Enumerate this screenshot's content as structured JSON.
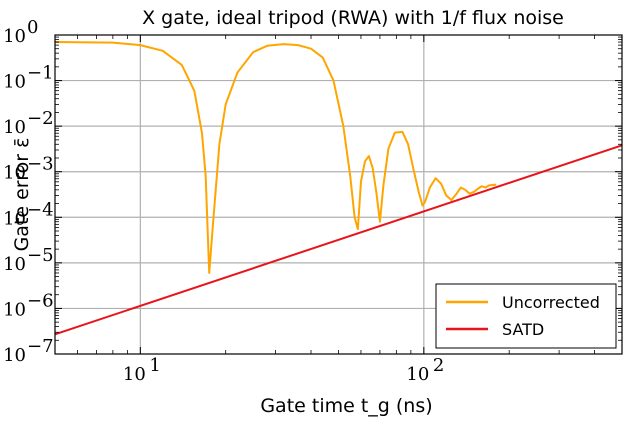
{
  "chart_data": {
    "type": "line",
    "title": "X gate, ideal tripod (RWA) with 1/f flux noise",
    "xlabel": "Gate time t_g (ns)",
    "ylabel": "Gate error ε̄",
    "xscale": "log",
    "yscale": "log",
    "xlim": [
      5,
      500
    ],
    "ylim": [
      1e-07,
      1
    ],
    "grid": true,
    "legend_position": "bottom-right",
    "x_tick_labels": [
      "10^1",
      "10^2"
    ],
    "y_tick_labels": [
      "10^0",
      "10^-1",
      "10^-2",
      "10^-3",
      "10^-4",
      "10^-5",
      "10^-6",
      "10^-7"
    ],
    "series": [
      {
        "name": "Uncorrected",
        "color": "#FFA500",
        "x": [
          5,
          8,
          10,
          12,
          14,
          15.5,
          16.5,
          17.0,
          17.3,
          17.5,
          18,
          19,
          20,
          22,
          25,
          28,
          32,
          36,
          40,
          44,
          48,
          52,
          55,
          57,
          58.5,
          59,
          60,
          62,
          64,
          66,
          68,
          70,
          72,
          75,
          79,
          84,
          88,
          92,
          96,
          99,
          101,
          105,
          110,
          115,
          120,
          125,
          130,
          135,
          140,
          145,
          150,
          155,
          160,
          165,
          170,
          180
        ],
        "y": [
          0.7,
          0.68,
          0.6,
          0.45,
          0.22,
          0.06,
          0.007,
          0.0008,
          4e-05,
          6e-06,
          6e-05,
          0.004,
          0.03,
          0.15,
          0.42,
          0.58,
          0.63,
          0.6,
          0.5,
          0.32,
          0.1,
          0.01,
          0.0008,
          0.0001,
          5.5e-05,
          0.00012,
          0.0006,
          0.0017,
          0.0022,
          0.0012,
          0.00035,
          8e-05,
          0.0005,
          0.0032,
          0.0072,
          0.0075,
          0.004,
          0.0011,
          0.00035,
          0.00018,
          0.00022,
          0.00045,
          0.00072,
          0.00055,
          0.0003,
          0.00024,
          0.00032,
          0.00045,
          0.0004,
          0.00033,
          0.00036,
          0.00042,
          0.00048,
          0.00045,
          0.0005,
          0.00052
        ]
      },
      {
        "name": "SATD",
        "color": "#E8141B",
        "x": [
          5,
          500
        ],
        "y": [
          2.7e-07,
          0.0038
        ]
      }
    ]
  }
}
